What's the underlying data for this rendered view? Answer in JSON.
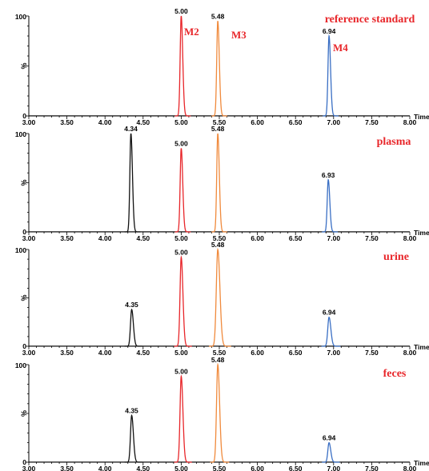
{
  "chart_data": [
    {
      "type": "line",
      "title": "reference standard",
      "xlabel": "Time",
      "ylabel": "%",
      "xlim": [
        3.0,
        8.0
      ],
      "ylim": [
        0,
        100
      ],
      "x_ticks": [
        "3.00",
        "3.50",
        "4.00",
        "4.50",
        "5.00",
        "5.50",
        "6.00",
        "6.50",
        "7.00",
        "7.50",
        "8.00"
      ],
      "y_ticks": [
        "0",
        "100"
      ],
      "series": [
        {
          "name": "M2",
          "color": "#e8262a",
          "peak_rt": 5.0,
          "peak_height": 100,
          "width": 0.025,
          "label": "5.00"
        },
        {
          "name": "M3",
          "color": "#f08a3c",
          "peak_rt": 5.48,
          "peak_height": 95,
          "width": 0.025,
          "label": "5.48"
        },
        {
          "name": "M4",
          "color": "#3a6fc4",
          "peak_rt": 6.94,
          "peak_height": 80,
          "width": 0.025,
          "label": "6.94"
        }
      ]
    },
    {
      "type": "line",
      "title": "plasma",
      "xlabel": "Time",
      "ylabel": "%",
      "xlim": [
        3.0,
        8.0
      ],
      "ylim": [
        0,
        100
      ],
      "x_ticks": [
        "3.00",
        "3.50",
        "4.00",
        "4.50",
        "5.00",
        "5.50",
        "6.00",
        "6.50",
        "7.00",
        "7.50",
        "8.00"
      ],
      "y_ticks": [
        "0",
        "100"
      ],
      "series": [
        {
          "color": "#111111",
          "peak_rt": 4.34,
          "peak_height": 100,
          "width": 0.025,
          "label": "4.34"
        },
        {
          "color": "#e8262a",
          "peak_rt": 5.0,
          "peak_height": 85,
          "width": 0.025,
          "label": "5.00"
        },
        {
          "color": "#f08a3c",
          "peak_rt": 5.48,
          "peak_height": 100,
          "width": 0.025,
          "label": "5.48"
        },
        {
          "color": "#3a6fc4",
          "peak_rt": 6.93,
          "peak_height": 53,
          "width": 0.025,
          "label": "6.93"
        }
      ]
    },
    {
      "type": "line",
      "title": "urine",
      "xlabel": "Time",
      "ylabel": "%",
      "xlim": [
        3.0,
        8.0
      ],
      "ylim": [
        0,
        100
      ],
      "x_ticks": [
        "3.00",
        "3.50",
        "4.00",
        "4.50",
        "5.00",
        "5.50",
        "6.00",
        "6.50",
        "7.00",
        "7.50",
        "8.00"
      ],
      "y_ticks": [
        "0",
        "100"
      ],
      "series": [
        {
          "color": "#111111",
          "peak_rt": 4.35,
          "peak_height": 38,
          "width": 0.028,
          "label": "4.35"
        },
        {
          "color": "#e8262a",
          "peak_rt": 5.0,
          "peak_height": 92,
          "width": 0.028,
          "label": "5.00"
        },
        {
          "color": "#f08a3c",
          "peak_rt": 5.48,
          "peak_height": 100,
          "width": 0.035,
          "label": "5.48"
        },
        {
          "color": "#3a6fc4",
          "peak_rt": 6.94,
          "peak_height": 30,
          "width": 0.03,
          "label": "6.94"
        }
      ]
    },
    {
      "type": "line",
      "title": "feces",
      "xlabel": "Time",
      "ylabel": "%",
      "xlim": [
        3.0,
        8.0
      ],
      "ylim": [
        0,
        100
      ],
      "x_ticks": [
        "3.00",
        "3.50",
        "4.00",
        "4.50",
        "5.00",
        "5.50",
        "6.00",
        "6.50",
        "7.00",
        "7.50",
        "8.00"
      ],
      "y_ticks": [
        "0",
        "100"
      ],
      "series": [
        {
          "color": "#111111",
          "peak_rt": 4.35,
          "peak_height": 48,
          "width": 0.028,
          "label": "4.35"
        },
        {
          "color": "#e8262a",
          "peak_rt": 5.0,
          "peak_height": 88,
          "width": 0.028,
          "label": "5.00"
        },
        {
          "color": "#f08a3c",
          "peak_rt": 5.48,
          "peak_height": 100,
          "width": 0.03,
          "label": "5.48"
        },
        {
          "color": "#3a6fc4",
          "peak_rt": 6.94,
          "peak_height": 20,
          "width": 0.028,
          "label": "6.94"
        }
      ]
    }
  ]
}
